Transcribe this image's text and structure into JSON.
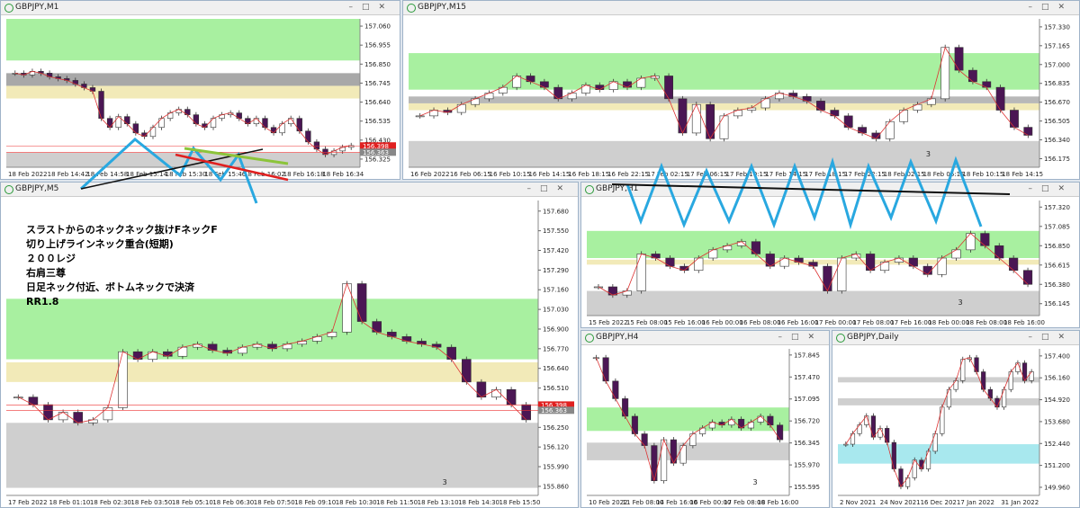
{
  "windows": [
    {
      "title": "GBPJPY,M1",
      "ylim": [
        156.28,
        157.1
      ],
      "yticks": [
        {
          "value": 157.06,
          "label": "157.060"
        },
        {
          "value": 156.955,
          "label": "156.955"
        },
        {
          "value": 156.85,
          "label": "156.850"
        },
        {
          "value": 156.745,
          "label": "156.745"
        },
        {
          "value": 156.64,
          "label": "156.640"
        },
        {
          "value": 156.535,
          "label": "156.535"
        },
        {
          "value": 156.43,
          "label": "156.430"
        },
        {
          "value": 156.325,
          "label": "156.325"
        }
      ],
      "price_tags": [
        156.398,
        156.363
      ],
      "xlabels": [
        "18 Feb 2022",
        "18 Feb 14:42",
        "18 Feb 14:58",
        "18 Feb 15:14",
        "18 Feb 15:30",
        "18 Feb 15:46",
        "18 Feb 16:02",
        "18 Feb 16:18",
        "18 Feb 16:34"
      ],
      "zones": [
        {
          "from": 156.87,
          "to": 157.1,
          "color": "#a8f0a0"
        },
        {
          "from": 156.66,
          "to": 156.73,
          "color": "#f2eab8"
        },
        {
          "from": 156.73,
          "to": 156.8,
          "color": "#a8a8a8"
        },
        {
          "from": 156.28,
          "to": 156.36,
          "color": "#cfcfcf"
        }
      ],
      "closes": [
        156.8,
        156.79,
        156.81,
        156.8,
        156.78,
        156.77,
        156.76,
        156.74,
        156.72,
        156.7,
        156.55,
        156.5,
        156.56,
        156.52,
        156.47,
        156.45,
        156.5,
        156.55,
        156.58,
        156.6,
        156.57,
        156.52,
        156.5,
        156.55,
        156.57,
        156.58,
        156.55,
        156.52,
        156.55,
        156.5,
        156.47,
        156.52,
        156.55,
        156.48,
        156.42,
        156.38,
        156.35,
        156.37,
        156.39,
        156.4
      ]
    },
    {
      "title": "GBPJPY,M15",
      "ylim": [
        156.1,
        157.4
      ],
      "yticks": [
        {
          "value": 157.33,
          "label": "157.330"
        },
        {
          "value": 157.165,
          "label": "157.165"
        },
        {
          "value": 157.0,
          "label": "157.000"
        },
        {
          "value": 156.835,
          "label": "156.835"
        },
        {
          "value": 156.67,
          "label": "156.670"
        },
        {
          "value": 156.505,
          "label": "156.505"
        },
        {
          "value": 156.34,
          "label": "156.340"
        },
        {
          "value": 156.175,
          "label": "156.175"
        }
      ],
      "note": "3",
      "xlabels": [
        "16 Feb 2022",
        "16 Feb 06:15",
        "16 Feb 10:15",
        "16 Feb 14:15",
        "16 Feb 18:15",
        "16 Feb 22:15",
        "17 Feb 02:15",
        "17 Feb 06:15",
        "17 Feb 10:15",
        "17 Feb 14:15",
        "17 Feb 18:15",
        "17 Feb 22:15",
        "18 Feb 02:15",
        "18 Feb 06:15",
        "18 Feb 10:15",
        "18 Feb 14:15"
      ],
      "zones": [
        {
          "from": 156.78,
          "to": 157.1,
          "color": "#a8f0a0"
        },
        {
          "from": 156.6,
          "to": 156.66,
          "color": "#f2eab8"
        },
        {
          "from": 156.66,
          "to": 156.72,
          "color": "#b8b8b8"
        },
        {
          "from": 156.1,
          "to": 156.33,
          "color": "#cfcfcf"
        }
      ],
      "closes": [
        156.55,
        156.6,
        156.58,
        156.65,
        156.7,
        156.75,
        156.8,
        156.9,
        156.85,
        156.8,
        156.7,
        156.75,
        156.82,
        156.78,
        156.85,
        156.8,
        156.88,
        156.9,
        156.7,
        156.4,
        156.65,
        156.35,
        156.55,
        156.6,
        156.62,
        156.7,
        156.75,
        156.72,
        156.68,
        156.6,
        156.55,
        156.45,
        156.4,
        156.35,
        156.5,
        156.6,
        156.65,
        156.7,
        157.15,
        156.95,
        156.85,
        156.8,
        156.6,
        156.45,
        156.38
      ]
    },
    {
      "title": "GBPJPY,M5",
      "ylim": [
        155.8,
        157.75
      ],
      "yticks": [
        {
          "value": 157.68,
          "label": "157.680"
        },
        {
          "value": 157.55,
          "label": "157.550"
        },
        {
          "value": 157.42,
          "label": "157.420"
        },
        {
          "value": 157.29,
          "label": "157.290"
        },
        {
          "value": 157.16,
          "label": "157.160"
        },
        {
          "value": 157.03,
          "label": "157.030"
        },
        {
          "value": 156.9,
          "label": "156.900"
        },
        {
          "value": 156.77,
          "label": "156.770"
        },
        {
          "value": 156.64,
          "label": "156.640"
        },
        {
          "value": 156.51,
          "label": "156.510"
        },
        {
          "value": 156.38,
          "label": "156.380"
        },
        {
          "value": 156.25,
          "label": "156.250"
        },
        {
          "value": 156.12,
          "label": "156.120"
        },
        {
          "value": 155.99,
          "label": "155.990"
        },
        {
          "value": 155.86,
          "label": "155.860"
        }
      ],
      "price_tags": [
        156.398,
        156.363
      ],
      "note": "3",
      "annotations": [
        "スラストからのネックネック抜けFネックF",
        "切り上げラインネック重合(短期)",
        "２００レジ",
        "右肩三尊",
        "日足ネック付近、ボトムネックで決済",
        "RR1.8"
      ],
      "xlabels": [
        "17 Feb 2022",
        "18 Feb 01:10",
        "18 Feb 02:30",
        "18 Feb 03:50",
        "18 Feb 05:10",
        "18 Feb 06:30",
        "18 Feb 07:50",
        "18 Feb 09:10",
        "18 Feb 10:30",
        "18 Feb 11:50",
        "18 Feb 13:10",
        "18 Feb 14:30",
        "18 Feb 15:50"
      ],
      "zones": [
        {
          "from": 156.7,
          "to": 157.1,
          "color": "#a8f0a0"
        },
        {
          "from": 156.55,
          "to": 156.68,
          "color": "#f2eab8"
        },
        {
          "from": 155.85,
          "to": 156.28,
          "color": "#cfcfcf"
        }
      ],
      "closes": [
        156.45,
        156.4,
        156.3,
        156.35,
        156.28,
        156.3,
        156.38,
        156.75,
        156.7,
        156.75,
        156.72,
        156.78,
        156.8,
        156.76,
        156.74,
        156.78,
        156.8,
        156.77,
        156.8,
        156.82,
        156.85,
        156.88,
        157.2,
        156.95,
        156.88,
        156.85,
        156.82,
        156.8,
        156.78,
        156.7,
        156.55,
        156.45,
        156.5,
        156.4,
        156.3
      ]
    },
    {
      "title": "GBPJPY,H1",
      "ylim": [
        156.0,
        157.4
      ],
      "yticks": [
        {
          "value": 157.32,
          "label": "157.320"
        },
        {
          "value": 157.085,
          "label": "157.085"
        },
        {
          "value": 156.85,
          "label": "156.850"
        },
        {
          "value": 156.615,
          "label": "156.615"
        },
        {
          "value": 156.38,
          "label": "156.380"
        },
        {
          "value": 156.145,
          "label": "156.145"
        }
      ],
      "note": "3",
      "xlabels": [
        "15 Feb 2022",
        "15 Feb 08:00",
        "15 Feb 16:00",
        "16 Feb 00:00",
        "16 Feb 08:00",
        "16 Feb 16:00",
        "17 Feb 00:00",
        "17 Feb 08:00",
        "17 Feb 16:00",
        "18 Feb 00:00",
        "18 Feb 08:00",
        "18 Feb 16:00"
      ],
      "zones": [
        {
          "from": 156.7,
          "to": 157.03,
          "color": "#a8f0a0"
        },
        {
          "from": 156.62,
          "to": 156.68,
          "color": "#f2eab8"
        },
        {
          "from": 156.0,
          "to": 156.3,
          "color": "#cfcfcf"
        }
      ],
      "closes": [
        156.35,
        156.25,
        156.3,
        156.75,
        156.7,
        156.6,
        156.55,
        156.7,
        156.8,
        156.85,
        156.9,
        156.75,
        156.6,
        156.7,
        156.65,
        156.6,
        156.3,
        156.7,
        156.75,
        156.55,
        156.65,
        156.7,
        156.6,
        156.5,
        156.7,
        156.8,
        157.0,
        156.85,
        156.7,
        156.55,
        156.38
      ]
    },
    {
      "title": "GBPJPY,H4",
      "ylim": [
        155.45,
        157.95
      ],
      "yticks": [
        {
          "value": 157.845,
          "label": "157.845"
        },
        {
          "value": 157.47,
          "label": "157.470"
        },
        {
          "value": 157.095,
          "label": "157.095"
        },
        {
          "value": 156.72,
          "label": "156.720"
        },
        {
          "value": 156.345,
          "label": "156.345"
        },
        {
          "value": 155.97,
          "label": "155.970"
        },
        {
          "value": 155.595,
          "label": "155.595"
        }
      ],
      "note": "3",
      "xlabels": [
        "10 Feb 2022",
        "11 Feb 08:00",
        "14 Feb 16:00",
        "16 Feb 00:00",
        "17 Feb 08:00",
        "18 Feb 16:00"
      ],
      "zones": [
        {
          "from": 156.55,
          "to": 156.95,
          "color": "#a8f0a0"
        },
        {
          "from": 156.05,
          "to": 156.35,
          "color": "#cfcfcf"
        }
      ],
      "closes": [
        157.8,
        157.4,
        157.1,
        156.8,
        156.5,
        156.3,
        155.7,
        156.4,
        156.0,
        156.3,
        156.5,
        156.6,
        156.7,
        156.65,
        156.75,
        156.6,
        156.7,
        156.8,
        156.65,
        156.4
      ]
    },
    {
      "title": "GBPJPY,Daily",
      "ylim": [
        149.5,
        157.8
      ],
      "yticks": [
        {
          "value": 157.4,
          "label": "157.400"
        },
        {
          "value": 156.16,
          "label": "156.160"
        },
        {
          "value": 154.92,
          "label": "154.920"
        },
        {
          "value": 153.68,
          "label": "153.680"
        },
        {
          "value": 152.44,
          "label": "152.440"
        },
        {
          "value": 151.2,
          "label": "151.200"
        },
        {
          "value": 149.96,
          "label": "149.960"
        }
      ],
      "xlabels": [
        "2 Nov 2021",
        "24 Nov 2021",
        "16 Dec 2021",
        "7 Jan 2022",
        "31 Jan 2022"
      ],
      "zones": [
        {
          "from": 155.9,
          "to": 156.2,
          "color": "#cfcfcf"
        },
        {
          "from": 154.6,
          "to": 155.0,
          "color": "#cfcfcf"
        },
        {
          "from": 151.3,
          "to": 152.4,
          "color": "#a8e8ee"
        }
      ],
      "closes": [
        152.4,
        153.0,
        153.5,
        154.0,
        152.8,
        153.3,
        152.5,
        151.0,
        150.0,
        150.5,
        151.5,
        151.0,
        152.0,
        153.0,
        154.5,
        155.5,
        156.0,
        157.2,
        157.3,
        156.5,
        155.5,
        155.0,
        154.5,
        155.5,
        156.5,
        157.0,
        156.0,
        156.5
      ]
    }
  ]
}
